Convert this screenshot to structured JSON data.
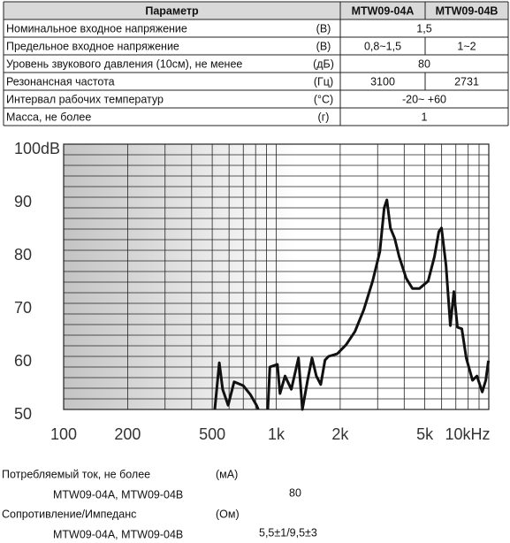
{
  "table": {
    "header": [
      "Параметр",
      "MTW09-04A",
      "MTW09-04B"
    ],
    "rows": [
      {
        "name": "Номинальное входное напряжение",
        "unit": "(В)",
        "values": [
          "1,5"
        ]
      },
      {
        "name": "Предельное входное напряжение",
        "unit": "(В)",
        "values": [
          "0,8~1,5",
          "1~2"
        ]
      },
      {
        "name": "Уровень звукового давления (10см), не менее",
        "unit": "(дБ)",
        "values": [
          "80"
        ]
      },
      {
        "name": "Резонансная частота",
        "unit": "(Гц)",
        "values": [
          "3100",
          "2731"
        ]
      },
      {
        "name": "Интервал рабочих температур",
        "unit": "(°C)",
        "values": [
          "-20~ +60"
        ]
      },
      {
        "name": "Масса, не более",
        "unit": "(г)",
        "values": [
          "1"
        ]
      }
    ]
  },
  "chart_data": {
    "type": "line",
    "xscale": "log",
    "color": "#111111",
    "x": [
      514,
      540,
      560,
      594,
      634,
      699,
      756,
      808,
      823,
      860,
      913,
      933,
      1013,
      1042,
      1101,
      1178,
      1273,
      1327,
      1405,
      1473,
      1545,
      1620,
      1697,
      1762,
      1937,
      2132,
      2347,
      2583,
      2843,
      3072,
      3223,
      3316,
      3446,
      3612,
      3788,
      4089,
      4373,
      4720,
      5186,
      5552,
      5823,
      5993,
      6289,
      6592,
      6850,
      7116,
      7467,
      7834,
      8385,
      8797,
      9316,
      9683,
      9965
    ],
    "values": [
      50,
      58.8,
      53.8,
      50.8,
      55.2,
      54.5,
      52.8,
      50.8,
      50,
      null,
      50,
      58,
      58.5,
      53,
      56.3,
      53.8,
      59.7,
      50,
      55.5,
      59.7,
      56.3,
      54.7,
      59.3,
      60,
      60.5,
      62.2,
      64.7,
      68.8,
      74.2,
      79.7,
      88,
      89.5,
      84.2,
      82.2,
      78.8,
      74.7,
      72.8,
      72.8,
      74.2,
      78.8,
      83.5,
      84.2,
      77.2,
      65.8,
      72.2,
      65.5,
      65.2,
      59.7,
      55.5,
      56.3,
      53.3,
      55.5,
      59.2
    ],
    "xlim": [
      100,
      10000
    ],
    "ylim": [
      50,
      100
    ],
    "xticks": [
      100,
      200,
      500,
      {
        "value": 1000,
        "label": "1k"
      },
      {
        "value": 2000,
        "label": "2k"
      },
      {
        "value": 5000,
        "label": "5k"
      },
      {
        "value": 10000,
        "label": "10kHz"
      }
    ],
    "yticks": [
      50,
      60,
      70,
      80,
      90,
      {
        "value": 100,
        "label": "100dB"
      }
    ],
    "x_grid": [
      100,
      200,
      300,
      400,
      500,
      600,
      700,
      800,
      900,
      1000,
      2000,
      3000,
      4000,
      5000,
      6000,
      7000,
      8000,
      9000,
      10000
    ],
    "y_grid": [
      50,
      52,
      54,
      56,
      58,
      60,
      62,
      64,
      66,
      68,
      70,
      72,
      74,
      76,
      78,
      80,
      82,
      84,
      86,
      88,
      90,
      92,
      94,
      96,
      98,
      100
    ]
  },
  "specs": [
    {
      "name": "Потребляемый ток, не более",
      "unit": "(мА)",
      "models": "MTW09-04A, MTW09-04B",
      "value": "80"
    },
    {
      "name": "Сопротивление/Импеданс",
      "unit": "(Ом)",
      "models": "MTW09-04A, MTW09-04B",
      "value": "5,5±1/9,5±3"
    }
  ]
}
